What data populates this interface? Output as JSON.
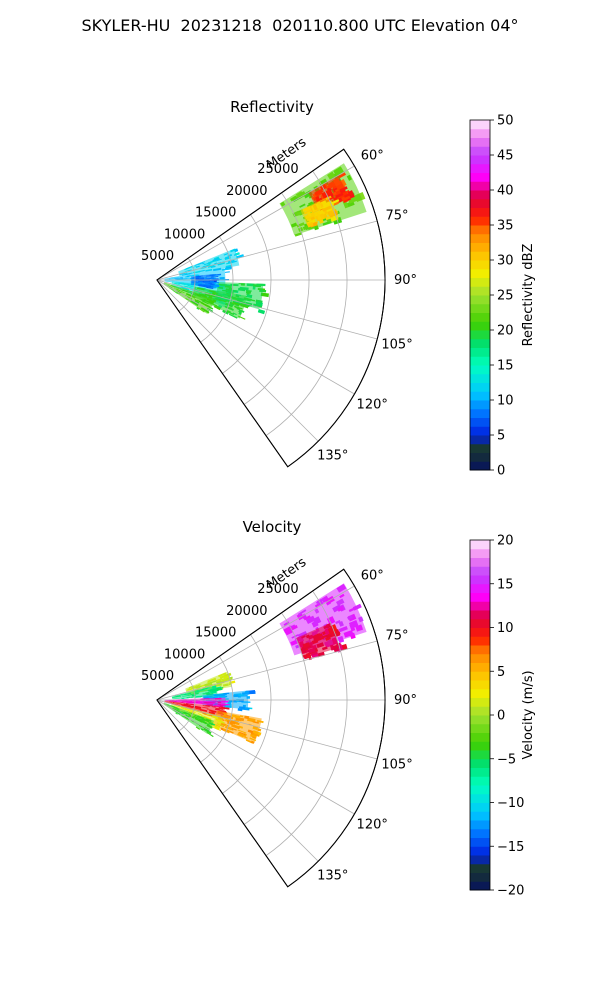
{
  "figure": {
    "title": "SKYLER-HU  20231218  020110.800 UTC Elevation 04°"
  },
  "chart_data": [
    {
      "type": "ppi_sector",
      "title": "Reflectivity",
      "range_axis_label": "Meters",
      "range_ticks": [
        5000,
        10000,
        15000,
        20000,
        25000
      ],
      "range_tick_labels": [
        "5000",
        "10000",
        "15000",
        "20000",
        "25000"
      ],
      "range_max": 30000,
      "azimuth_range": [
        55,
        145
      ],
      "azimuth_ticks": [
        60,
        75,
        90,
        105,
        120,
        135
      ],
      "azimuth_tick_labels": [
        "60°",
        "75°",
        "90°",
        "105°",
        "120°",
        "135°"
      ],
      "grid": true,
      "colorbar": {
        "label": "Reflectivity dBZ",
        "min": 0,
        "max": 50,
        "ticks": [
          0,
          5,
          10,
          15,
          20,
          25,
          30,
          35,
          40,
          45,
          50
        ],
        "tick_labels": [
          "0",
          "5",
          "10",
          "15",
          "20",
          "25",
          "30",
          "35",
          "40",
          "45",
          "50"
        ]
      },
      "echoes": [
        {
          "az": [
            58,
            72
          ],
          "r": [
            19000,
            29000
          ],
          "value": 22
        },
        {
          "az": [
            60,
            66
          ],
          "r": [
            23000,
            27500
          ],
          "value": 36
        },
        {
          "az": [
            64,
            70
          ],
          "r": [
            21000,
            25000
          ],
          "value": 30
        },
        {
          "az": [
            68,
            80
          ],
          "r": [
            3000,
            11000
          ],
          "value": 12
        },
        {
          "az": [
            80,
            98
          ],
          "r": [
            1000,
            9000
          ],
          "value": 11
        },
        {
          "az": [
            95,
            112
          ],
          "r": [
            2000,
            10000
          ],
          "value": 13
        },
        {
          "az": [
            100,
            115
          ],
          "r": [
            5000,
            12000
          ],
          "value": 20
        },
        {
          "az": [
            108,
            124
          ],
          "r": [
            1000,
            8000
          ],
          "value": 21
        },
        {
          "az": [
            92,
            106
          ],
          "r": [
            8000,
            14000
          ],
          "value": 19
        },
        {
          "az": [
            84,
            98
          ],
          "r": [
            4500,
            7500
          ],
          "value": 8
        }
      ]
    },
    {
      "type": "ppi_sector",
      "title": "Velocity",
      "range_axis_label": "Meters",
      "range_ticks": [
        5000,
        10000,
        15000,
        20000,
        25000
      ],
      "range_tick_labels": [
        "5000",
        "10000",
        "15000",
        "20000",
        "25000"
      ],
      "range_max": 30000,
      "azimuth_range": [
        55,
        145
      ],
      "azimuth_ticks": [
        60,
        75,
        90,
        105,
        120,
        135
      ],
      "azimuth_tick_labels": [
        "60°",
        "75°",
        "90°",
        "105°",
        "120°",
        "135°"
      ],
      "grid": true,
      "colorbar": {
        "label": "Velocity (m/s)",
        "min": -20,
        "max": 20,
        "ticks": [
          -20,
          -15,
          -10,
          -5,
          0,
          5,
          10,
          15,
          20
        ],
        "tick_labels": [
          "−20",
          "−15",
          "−10",
          "−5",
          "0",
          "5",
          "10",
          "15",
          "20"
        ]
      },
      "echoes": [
        {
          "az": [
            58,
            72
          ],
          "r": [
            19000,
            29000
          ],
          "value": 15
        },
        {
          "az": [
            66,
            74
          ],
          "r": [
            20000,
            25000
          ],
          "value": 11
        },
        {
          "az": [
            68,
            80
          ],
          "r": [
            4000,
            10000
          ],
          "value": 1
        },
        {
          "az": [
            76,
            86
          ],
          "r": [
            2000,
            8000
          ],
          "value": -6
        },
        {
          "az": [
            84,
            96
          ],
          "r": [
            6000,
            12000
          ],
          "value": -12
        },
        {
          "az": [
            88,
            96
          ],
          "r": [
            1000,
            9000
          ],
          "value": 13
        },
        {
          "az": [
            96,
            106
          ],
          "r": [
            1000,
            9000
          ],
          "value": 10
        },
        {
          "az": [
            100,
            114
          ],
          "r": [
            8000,
            14000
          ],
          "value": 6
        },
        {
          "az": [
            104,
            116
          ],
          "r": [
            2000,
            9000
          ],
          "value": 2
        },
        {
          "az": [
            110,
            124
          ],
          "r": [
            1000,
            8000
          ],
          "value": -4
        }
      ]
    }
  ]
}
